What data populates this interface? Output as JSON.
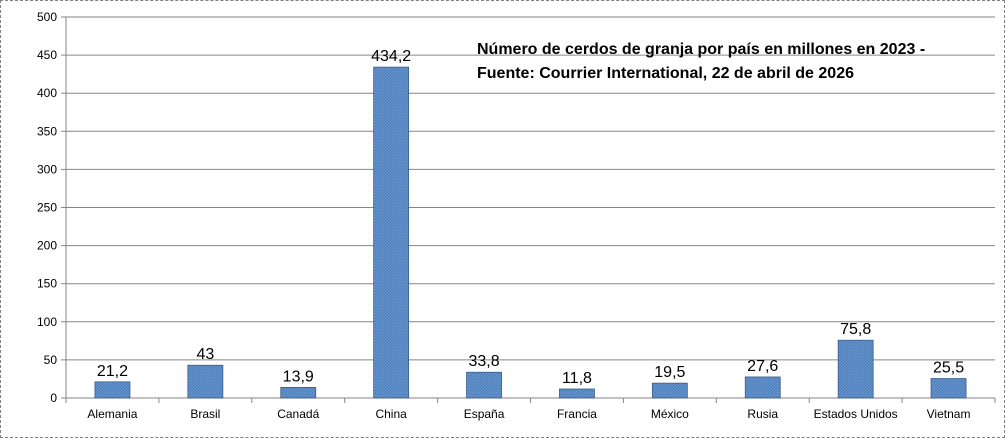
{
  "chart_data": {
    "type": "bar",
    "title_lines": [
      "Número de cerdos de granja por país en millones en 2023 -",
      "Fuente: Courrier International, 22 de abril de 2026"
    ],
    "categories": [
      "Alemania",
      "Brasil",
      "Canadá",
      "China",
      "España",
      "Francia",
      "México",
      "Rusia",
      "Estados Unidos",
      "Vietnam"
    ],
    "values": [
      21.2,
      43,
      13.9,
      434.2,
      33.8,
      11.8,
      19.5,
      27.6,
      75.8,
      25.5
    ],
    "value_labels": [
      "21,2",
      "43",
      "13,9",
      "434,2",
      "33,8",
      "11,8",
      "19,5",
      "27,6",
      "75,8",
      "25,5"
    ],
    "yticks": [
      0,
      50,
      100,
      150,
      200,
      250,
      300,
      350,
      400,
      450,
      500
    ],
    "ylim": [
      0,
      500
    ],
    "xlabel": "",
    "ylabel": "",
    "grid": true,
    "legend": false,
    "bar_color": "#4f81bd"
  }
}
